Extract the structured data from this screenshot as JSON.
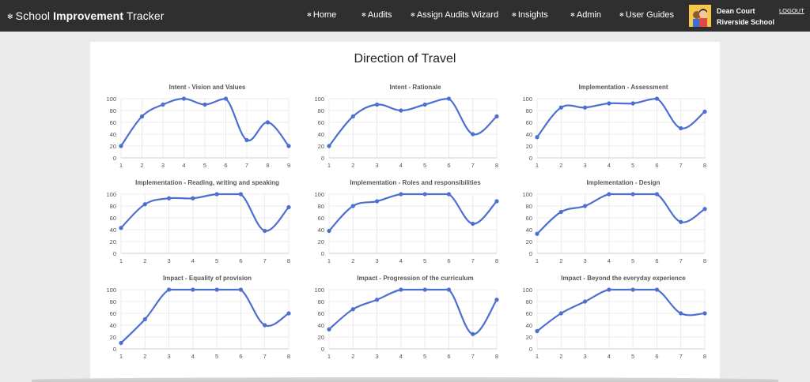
{
  "nav": {
    "brand_part1": "School",
    "brand_part2": "Improvement",
    "brand_part3": "Tracker",
    "links": [
      "Home",
      "Audits",
      "Assign Audits Wizard",
      "Insights",
      "Admin",
      "User Guides"
    ],
    "user_name": "Dean Court",
    "user_school": "Riverside School",
    "logout_label": "LOGOUT"
  },
  "page": {
    "title": "Direction of Travel"
  },
  "colors": {
    "line": "#4c6fd0",
    "navbar": "#2f2f2f",
    "grid": "#e6e6e6"
  },
  "chart_data": [
    {
      "type": "line",
      "title": "Intent - Vision and Values",
      "x": [
        1,
        2,
        3,
        4,
        5,
        6,
        7,
        8,
        9
      ],
      "values": [
        20,
        70,
        90,
        100,
        90,
        100,
        30,
        60,
        20
      ],
      "ylim": [
        0,
        100
      ],
      "yticks": [
        0,
        20,
        40,
        60,
        80,
        100
      ],
      "grid": true
    },
    {
      "type": "line",
      "title": "Intent - Rationale",
      "x": [
        1,
        2,
        3,
        4,
        5,
        6,
        7,
        8
      ],
      "values": [
        20,
        70,
        90,
        80,
        90,
        100,
        40,
        70
      ],
      "ylim": [
        0,
        100
      ],
      "yticks": [
        0,
        20,
        40,
        60,
        80,
        100
      ],
      "grid": true
    },
    {
      "type": "line",
      "title": "Implementation - Assessment",
      "x": [
        1,
        2,
        3,
        4,
        5,
        6,
        7,
        8
      ],
      "values": [
        35,
        85,
        85,
        92,
        92,
        100,
        50,
        78
      ],
      "ylim": [
        0,
        100
      ],
      "yticks": [
        0,
        20,
        40,
        60,
        80,
        100
      ],
      "grid": true
    },
    {
      "type": "line",
      "title": "Implementation - Reading, writing and speaking",
      "x": [
        1,
        2,
        3,
        4,
        5,
        6,
        7,
        8
      ],
      "values": [
        43,
        83,
        93,
        93,
        100,
        100,
        38,
        78
      ],
      "ylim": [
        0,
        100
      ],
      "yticks": [
        0,
        20,
        40,
        60,
        80,
        100
      ],
      "grid": true
    },
    {
      "type": "line",
      "title": "Implementation - Roles and responsibilities",
      "x": [
        1,
        2,
        3,
        4,
        5,
        6,
        7,
        8
      ],
      "values": [
        38,
        80,
        88,
        100,
        100,
        100,
        50,
        88
      ],
      "ylim": [
        0,
        100
      ],
      "yticks": [
        0,
        20,
        40,
        60,
        80,
        100
      ],
      "grid": true
    },
    {
      "type": "line",
      "title": "Implementation - Design",
      "x": [
        1,
        2,
        3,
        4,
        5,
        6,
        7,
        8
      ],
      "values": [
        33,
        70,
        80,
        100,
        100,
        100,
        53,
        75
      ],
      "ylim": [
        0,
        100
      ],
      "yticks": [
        0,
        20,
        40,
        60,
        80,
        100
      ],
      "grid": true
    },
    {
      "type": "line",
      "title": "Impact - Equality of provision",
      "x": [
        1,
        2,
        3,
        4,
        5,
        6,
        7,
        8
      ],
      "values": [
        10,
        50,
        100,
        100,
        100,
        100,
        40,
        60
      ],
      "ylim": [
        0,
        100
      ],
      "yticks": [
        0,
        20,
        40,
        60,
        80,
        100
      ],
      "grid": true
    },
    {
      "type": "line",
      "title": "Impact - Progression of the curriculum",
      "x": [
        1,
        2,
        3,
        4,
        5,
        6,
        7,
        8
      ],
      "values": [
        33,
        67,
        83,
        100,
        100,
        100,
        25,
        83
      ],
      "ylim": [
        0,
        100
      ],
      "yticks": [
        0,
        20,
        40,
        60,
        80,
        100
      ],
      "grid": true
    },
    {
      "type": "line",
      "title": "Impact - Beyond the everyday experience",
      "x": [
        1,
        2,
        3,
        4,
        5,
        6,
        7,
        8
      ],
      "values": [
        30,
        60,
        80,
        100,
        100,
        100,
        60,
        60
      ],
      "ylim": [
        0,
        100
      ],
      "yticks": [
        0,
        20,
        40,
        60,
        80,
        100
      ],
      "grid": true
    }
  ]
}
